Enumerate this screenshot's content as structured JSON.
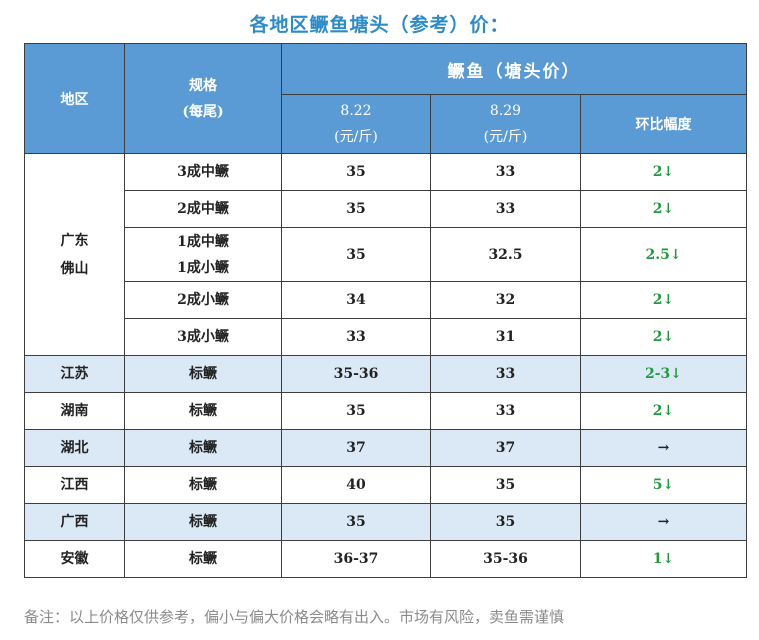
{
  "title": "各地区鳜鱼塘头（参考）价：",
  "header": {
    "region": "地区",
    "spec_line1": "规格",
    "spec_line2": "(每尾)",
    "product": "鳜鱼（塘头价）",
    "date1": "8.22",
    "date2": "8.29",
    "unit": "(元/斤)",
    "change": "环比幅度"
  },
  "rows": [
    {
      "region": [
        "广东",
        "佛山"
      ],
      "spec": [
        "3成中鳜"
      ],
      "p1": "35",
      "p2": "33",
      "change": "2↓",
      "trend": "down",
      "shaded": false
    },
    {
      "region": null,
      "spec": [
        "2成中鳜"
      ],
      "p1": "35",
      "p2": "33",
      "change": "2↓",
      "trend": "down",
      "shaded": false
    },
    {
      "region": null,
      "spec": [
        "1成中鳜",
        "1成小鳜"
      ],
      "p1": "35",
      "p2": "32.5",
      "change": "2.5↓",
      "trend": "down",
      "shaded": false
    },
    {
      "region": null,
      "spec": [
        "2成小鳜"
      ],
      "p1": "34",
      "p2": "32",
      "change": "2↓",
      "trend": "down",
      "shaded": false
    },
    {
      "region": null,
      "spec": [
        "3成小鳜"
      ],
      "p1": "33",
      "p2": "31",
      "change": "2↓",
      "trend": "down",
      "shaded": false
    },
    {
      "region": [
        "江苏"
      ],
      "spec": [
        "标鳜"
      ],
      "p1": "35-36",
      "p2": "33",
      "change": "2-3↓",
      "trend": "down",
      "shaded": true
    },
    {
      "region": [
        "湖南"
      ],
      "spec": [
        "标鳜"
      ],
      "p1": "35",
      "p2": "33",
      "change": "2↓",
      "trend": "down",
      "shaded": false
    },
    {
      "region": [
        "湖北"
      ],
      "spec": [
        "标鳜"
      ],
      "p1": "37",
      "p2": "37",
      "change": "→",
      "trend": "flat",
      "shaded": true
    },
    {
      "region": [
        "江西"
      ],
      "spec": [
        "标鳜"
      ],
      "p1": "40",
      "p2": "35",
      "change": "5↓",
      "trend": "down",
      "shaded": false
    },
    {
      "region": [
        "广西"
      ],
      "spec": [
        "标鳜"
      ],
      "p1": "35",
      "p2": "35",
      "change": "→",
      "trend": "flat",
      "shaded": true
    },
    {
      "region": [
        "安徽"
      ],
      "spec": [
        "标鳜"
      ],
      "p1": "36-37",
      "p2": "35-36",
      "change": "1↓",
      "trend": "down",
      "shaded": false
    }
  ],
  "footnote": "备注：以上价格仅供参考，偏小与偏大价格会略有出入。市场有风险，卖鱼需谨慎",
  "colors": {
    "header_bg": "#5b9bd5",
    "shade_bg": "#dbe8f5",
    "down": "#1e9c3c",
    "title": "#2e8bc9"
  }
}
